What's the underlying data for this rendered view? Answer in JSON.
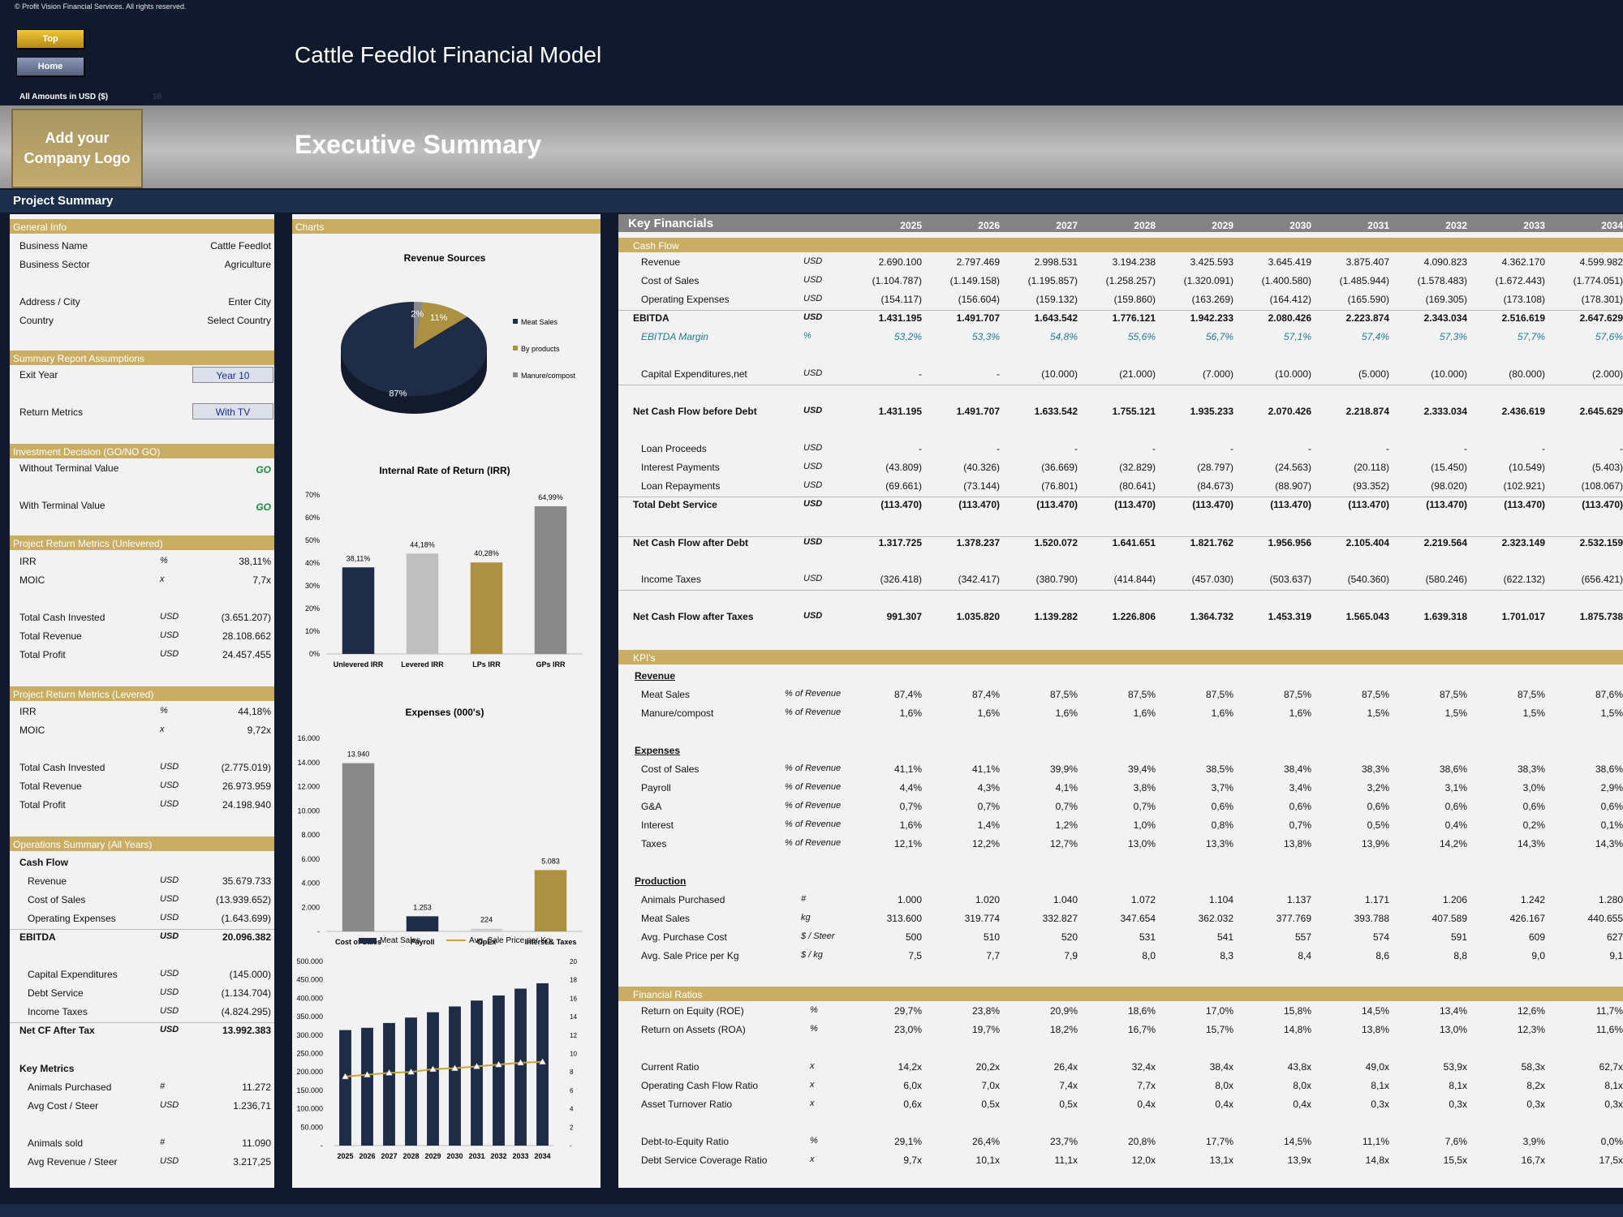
{
  "copyright": "© Profit Vision Financial Services. All rights reserved.",
  "nav": {
    "top": "Top",
    "home": "Home"
  },
  "model_title": "Cattle Feedlot Financial Model",
  "amounts_label": "All Amounts in  USD ($)",
  "amounts_faint": "16",
  "logo": {
    "line1": "Add your",
    "line2": "Company Logo"
  },
  "exec_title": "Executive Summary",
  "project_summary": "Project Summary",
  "colors": {
    "gold": "#c8ad62",
    "navy": "#1b2e4b",
    "go": "#1a8c3b"
  },
  "left": {
    "general_info": {
      "title": "General Info",
      "rows": [
        {
          "label": "Business Name",
          "value": "Cattle Feedlot"
        },
        {
          "label": "Business Sector",
          "value": "Agriculture"
        },
        {
          "label": "Address / City",
          "value": "Enter City"
        },
        {
          "label": "Country",
          "value": "Select Country"
        }
      ]
    },
    "assumptions": {
      "title": "Summary  Report Assumptions",
      "exit_label": "Exit Year",
      "exit_value": "Year 10",
      "return_label": "Return Metrics",
      "return_value": "With TV"
    },
    "decision": {
      "title": "Investment Decision (GO/NO GO)",
      "without_label": "Without Terminal Value",
      "without_value": "GO",
      "with_label": "With Terminal Value",
      "with_value": "GO"
    },
    "unlevered": {
      "title": "Project Return Metrics (Unlevered)",
      "rows": [
        {
          "label": "IRR",
          "unit": "%",
          "value": "38,11%"
        },
        {
          "label": "MOIC",
          "unit": "x",
          "value": "7,7x"
        },
        {
          "label": "Total Cash Invested",
          "unit": "USD",
          "value": "(3.651.207)"
        },
        {
          "label": "Total Revenue",
          "unit": "USD",
          "value": "28.108.662"
        },
        {
          "label": "Total Profit",
          "unit": "USD",
          "value": "24.457.455"
        }
      ]
    },
    "levered": {
      "title": "Project Return Metrics (Levered)",
      "rows": [
        {
          "label": "IRR",
          "unit": "%",
          "value": "44,18%"
        },
        {
          "label": "MOIC",
          "unit": "x",
          "value": "9,72x"
        },
        {
          "label": "Total Cash Invested",
          "unit": "USD",
          "value": "(2.775.019)"
        },
        {
          "label": "Total Revenue",
          "unit": "USD",
          "value": "26.973.959"
        },
        {
          "label": "Total Profit",
          "unit": "USD",
          "value": "24.198.940"
        }
      ]
    },
    "operations": {
      "title": "Operations Summary (All Years)",
      "cashflow_label": "Cash Flow",
      "rows": [
        {
          "label": "Revenue",
          "unit": "USD",
          "value": "35.679.733"
        },
        {
          "label": "Cost of Sales",
          "unit": "USD",
          "value": "(13.939.652)"
        },
        {
          "label": "Operating Expenses",
          "unit": "USD",
          "value": "(1.643.699)"
        },
        {
          "label": "EBITDA",
          "unit": "USD",
          "value": "20.096.382"
        },
        {
          "label": "Capital Expenditures",
          "unit": "USD",
          "value": "(145.000)"
        },
        {
          "label": "Debt Service",
          "unit": "USD",
          "value": "(1.134.704)"
        },
        {
          "label": "Income Taxes",
          "unit": "USD",
          "value": "(4.824.295)"
        },
        {
          "label": "Net CF After Tax",
          "unit": "USD",
          "value": "13.992.383"
        }
      ],
      "key_metrics_label": "Key Metrics",
      "metrics": [
        {
          "label": "Animals Purchased",
          "unit": "#",
          "value": "11.272"
        },
        {
          "label": "Avg Cost / Steer",
          "unit": "USD",
          "value": "1.236,71"
        },
        {
          "label": "Animals sold",
          "unit": "#",
          "value": "11.090"
        },
        {
          "label": "Avg Revenue / Steer",
          "unit": "USD",
          "value": "3.217,25"
        }
      ]
    }
  },
  "charts_title": "Charts",
  "chart_data": [
    {
      "type": "pie",
      "title": "Revenue Sources",
      "categories": [
        "Meat Sales",
        "By products",
        "Manure/compost"
      ],
      "values": [
        87,
        11,
        2
      ],
      "labels": [
        "87%",
        "11%",
        "2%"
      ],
      "colors": [
        "#1f2c45",
        "#ad9142",
        "#8a8a8a"
      ],
      "legend": "right"
    },
    {
      "type": "bar",
      "title": "Internal Rate of Return (IRR)",
      "categories": [
        "Unlevered IRR",
        "Levered IRR",
        "LPs IRR",
        "GPs IRR"
      ],
      "values": [
        38.11,
        44.18,
        40.28,
        64.99
      ],
      "labels": [
        "38,11%",
        "44,18%",
        "40,28%",
        "64,99%"
      ],
      "colors": [
        "#1f2c45",
        "#bfbfbf",
        "#ad9142",
        "#8a8a8a"
      ],
      "ylim": [
        0,
        70
      ],
      "yticks": [
        "0%",
        "10%",
        "20%",
        "30%",
        "40%",
        "50%",
        "60%",
        "70%"
      ]
    },
    {
      "type": "bar",
      "title": "Expenses (000's)",
      "categories": [
        "Cost of Sales",
        "Payroll",
        "OpEx",
        "Interst & Taxes"
      ],
      "values": [
        13940,
        1253,
        224,
        5083
      ],
      "labels": [
        "13.940",
        "1.253",
        "224",
        "5.083"
      ],
      "colors": [
        "#8a8a8a",
        "#1f2c45",
        "#d0d0d0",
        "#ad9142"
      ],
      "ylim": [
        0,
        16000
      ],
      "yticks": [
        "-",
        "2.000",
        "4.000",
        "6.000",
        "8.000",
        "10.000",
        "12.000",
        "14.000",
        "16.000"
      ]
    },
    {
      "type": "bar",
      "title": "",
      "categories": [
        "2025",
        "2026",
        "2027",
        "2028",
        "2029",
        "2030",
        "2031",
        "2032",
        "2033",
        "2034"
      ],
      "series": [
        {
          "name": "Meat Sales",
          "type": "bar",
          "values": [
            313600,
            319774,
            332827,
            347654,
            362032,
            377769,
            393788,
            407589,
            426167,
            440655
          ]
        },
        {
          "name": "Avg. Sale Price per Kg",
          "type": "line",
          "axis": "right",
          "values": [
            7.5,
            7.7,
            7.9,
            8.0,
            8.3,
            8.4,
            8.6,
            8.8,
            9.0,
            9.1
          ]
        }
      ],
      "ylim": [
        0,
        500000
      ],
      "y2lim": [
        0,
        20
      ],
      "yticks": [
        "-",
        "50.000",
        "100.000",
        "150.000",
        "200.000",
        "250.000",
        "300.000",
        "350.000",
        "400.000",
        "450.000",
        "500.000"
      ],
      "y2ticks": [
        "-",
        "2",
        "4",
        "6",
        "8",
        "10",
        "12",
        "14",
        "16",
        "18",
        "20"
      ],
      "legend": "top"
    }
  ],
  "financials": {
    "title": "Key Financials",
    "years": [
      "2025",
      "2026",
      "2027",
      "2028",
      "2029",
      "2030",
      "2031",
      "2032",
      "2033",
      "2034"
    ],
    "sections": {
      "cash_flow": "Cash Flow",
      "kpis": "KPI's",
      "ratios": "Financial Ratios"
    },
    "subheads": {
      "revenue": "Revenue",
      "expenses": "Expenses",
      "production": "Production"
    },
    "cash_flow_rows": [
      {
        "label": "Revenue",
        "unit": "USD",
        "values": [
          "2.690.100",
          "2.797.469",
          "2.998.531",
          "3.194.238",
          "3.425.593",
          "3.645.419",
          "3.875.407",
          "4.090.823",
          "4.362.170",
          "4.599.982"
        ]
      },
      {
        "label": "Cost of Sales",
        "unit": "USD",
        "values": [
          "(1.104.787)",
          "(1.149.158)",
          "(1.195.857)",
          "(1.258.257)",
          "(1.320.091)",
          "(1.400.580)",
          "(1.485.944)",
          "(1.578.483)",
          "(1.672.443)",
          "(1.774.051)"
        ]
      },
      {
        "label": "Operating Expenses",
        "unit": "USD",
        "values": [
          "(154.117)",
          "(156.604)",
          "(159.132)",
          "(159.860)",
          "(163.269)",
          "(164.412)",
          "(165.590)",
          "(169.305)",
          "(173.108)",
          "(178.301)"
        ]
      },
      {
        "label": "EBITDA",
        "unit": "USD",
        "values": [
          "1.431.195",
          "1.491.707",
          "1.643.542",
          "1.776.121",
          "1.942.233",
          "2.080.426",
          "2.223.874",
          "2.343.034",
          "2.516.619",
          "2.647.629"
        ]
      },
      {
        "label": "EBITDA Margin",
        "unit": "%",
        "values": [
          "53,2%",
          "53,3%",
          "54,8%",
          "55,6%",
          "56,7%",
          "57,1%",
          "57,4%",
          "57,3%",
          "57,7%",
          "57,6%"
        ]
      },
      {
        "label": "Capital Expenditures,net",
        "unit": "USD",
        "values": [
          "-",
          "-",
          "(10.000)",
          "(21.000)",
          "(7.000)",
          "(10.000)",
          "(5.000)",
          "(10.000)",
          "(80.000)",
          "(2.000)"
        ]
      },
      {
        "label": "Net Cash Flow before Debt",
        "unit": "USD",
        "values": [
          "1.431.195",
          "1.491.707",
          "1.633.542",
          "1.755.121",
          "1.935.233",
          "2.070.426",
          "2.218.874",
          "2.333.034",
          "2.436.619",
          "2.645.629"
        ]
      },
      {
        "label": "Loan Proceeds",
        "unit": "USD",
        "values": [
          "-",
          "-",
          "-",
          "-",
          "-",
          "-",
          "-",
          "-",
          "-",
          "-"
        ]
      },
      {
        "label": "Interest Payments",
        "unit": "USD",
        "values": [
          "(43.809)",
          "(40.326)",
          "(36.669)",
          "(32.829)",
          "(28.797)",
          "(24.563)",
          "(20.118)",
          "(15.450)",
          "(10.549)",
          "(5.403)"
        ]
      },
      {
        "label": "Loan Repayments",
        "unit": "USD",
        "values": [
          "(69.661)",
          "(73.144)",
          "(76.801)",
          "(80.641)",
          "(84.673)",
          "(88.907)",
          "(93.352)",
          "(98.020)",
          "(102.921)",
          "(108.067)"
        ]
      },
      {
        "label": "Total Debt Service",
        "unit": "USD",
        "values": [
          "(113.470)",
          "(113.470)",
          "(113.470)",
          "(113.470)",
          "(113.470)",
          "(113.470)",
          "(113.470)",
          "(113.470)",
          "(113.470)",
          "(113.470)"
        ]
      },
      {
        "label": "Net Cash Flow after Debt",
        "unit": "USD",
        "values": [
          "1.317.725",
          "1.378.237",
          "1.520.072",
          "1.641.651",
          "1.821.762",
          "1.956.956",
          "2.105.404",
          "2.219.564",
          "2.323.149",
          "2.532.159"
        ]
      },
      {
        "label": "Income Taxes",
        "unit": "USD",
        "values": [
          "(326.418)",
          "(342.417)",
          "(380.790)",
          "(414.844)",
          "(457.030)",
          "(503.637)",
          "(540.360)",
          "(580.246)",
          "(622.132)",
          "(656.421)"
        ]
      },
      {
        "label": "Net Cash Flow after Taxes",
        "unit": "USD",
        "values": [
          "991.307",
          "1.035.820",
          "1.139.282",
          "1.226.806",
          "1.364.732",
          "1.453.319",
          "1.565.043",
          "1.639.318",
          "1.701.017",
          "1.875.738"
        ]
      }
    ],
    "kpi_rows": [
      {
        "label": "Meat Sales",
        "unit": "% of Revenue",
        "values": [
          "87,4%",
          "87,4%",
          "87,5%",
          "87,5%",
          "87,5%",
          "87,5%",
          "87,5%",
          "87,5%",
          "87,5%",
          "87,6%"
        ]
      },
      {
        "label": "Manure/compost",
        "unit": "% of Revenue",
        "values": [
          "1,6%",
          "1,6%",
          "1,6%",
          "1,6%",
          "1,6%",
          "1,6%",
          "1,5%",
          "1,5%",
          "1,5%",
          "1,5%"
        ]
      },
      {
        "label": "Cost of Sales",
        "unit": "% of Revenue",
        "values": [
          "41,1%",
          "41,1%",
          "39,9%",
          "39,4%",
          "38,5%",
          "38,4%",
          "38,3%",
          "38,6%",
          "38,3%",
          "38,6%"
        ]
      },
      {
        "label": "Payroll",
        "unit": "% of Revenue",
        "values": [
          "4,4%",
          "4,3%",
          "4,1%",
          "3,8%",
          "3,7%",
          "3,4%",
          "3,2%",
          "3,1%",
          "3,0%",
          "2,9%"
        ]
      },
      {
        "label": "G&A",
        "unit": "% of Revenue",
        "values": [
          "0,7%",
          "0,7%",
          "0,7%",
          "0,7%",
          "0,6%",
          "0,6%",
          "0,6%",
          "0,6%",
          "0,6%",
          "0,6%"
        ]
      },
      {
        "label": "Interest",
        "unit": "% of Revenue",
        "values": [
          "1,6%",
          "1,4%",
          "1,2%",
          "1,0%",
          "0,8%",
          "0,7%",
          "0,5%",
          "0,4%",
          "0,2%",
          "0,1%"
        ]
      },
      {
        "label": "Taxes",
        "unit": "% of Revenue",
        "values": [
          "12,1%",
          "12,2%",
          "12,7%",
          "13,0%",
          "13,3%",
          "13,8%",
          "13,9%",
          "14,2%",
          "14,3%",
          "14,3%"
        ]
      },
      {
        "label": "Animals Purchased",
        "unit": "#",
        "values": [
          "1.000",
          "1.020",
          "1.040",
          "1.072",
          "1.104",
          "1.137",
          "1.171",
          "1.206",
          "1.242",
          "1.280"
        ]
      },
      {
        "label": "Meat Sales",
        "unit": "kg",
        "values": [
          "313.600",
          "319.774",
          "332.827",
          "347.654",
          "362.032",
          "377.769",
          "393.788",
          "407.589",
          "426.167",
          "440.655"
        ]
      },
      {
        "label": "Avg. Purchase Cost",
        "unit": "$ / Steer",
        "values": [
          "500",
          "510",
          "520",
          "531",
          "541",
          "557",
          "574",
          "591",
          "609",
          "627"
        ]
      },
      {
        "label": "Avg. Sale Price per Kg",
        "unit": "$ / kg",
        "values": [
          "7,5",
          "7,7",
          "7,9",
          "8,0",
          "8,3",
          "8,4",
          "8,6",
          "8,8",
          "9,0",
          "9,1"
        ]
      }
    ],
    "ratio_rows": [
      {
        "label": "Return on Equity (ROE)",
        "unit": "%",
        "values": [
          "29,7%",
          "23,8%",
          "20,9%",
          "18,6%",
          "17,0%",
          "15,8%",
          "14,5%",
          "13,4%",
          "12,6%",
          "11,7%"
        ]
      },
      {
        "label": "Return on Assets (ROA)",
        "unit": "%",
        "values": [
          "23,0%",
          "19,7%",
          "18,2%",
          "16,7%",
          "15,7%",
          "14,8%",
          "13,8%",
          "13,0%",
          "12,3%",
          "11,6%"
        ]
      },
      {
        "label": "Current Ratio",
        "unit": "x",
        "values": [
          "14,2x",
          "20,2x",
          "26,4x",
          "32,4x",
          "38,4x",
          "43,8x",
          "49,0x",
          "53,9x",
          "58,3x",
          "62,7x"
        ]
      },
      {
        "label": "Operating Cash Flow Ratio",
        "unit": "x",
        "values": [
          "6,0x",
          "7,0x",
          "7,4x",
          "7,7x",
          "8,0x",
          "8,0x",
          "8,1x",
          "8,1x",
          "8,2x",
          "8,1x"
        ]
      },
      {
        "label": "Asset Turnover Ratio",
        "unit": "x",
        "values": [
          "0,6x",
          "0,5x",
          "0,5x",
          "0,4x",
          "0,4x",
          "0,4x",
          "0,3x",
          "0,3x",
          "0,3x",
          "0,3x"
        ]
      },
      {
        "label": "Debt-to-Equity Ratio",
        "unit": "%",
        "values": [
          "29,1%",
          "26,4%",
          "23,7%",
          "20,8%",
          "17,7%",
          "14,5%",
          "11,1%",
          "7,6%",
          "3,9%",
          "0,0%"
        ]
      },
      {
        "label": "Debt Service Coverage Ratio",
        "unit": "x",
        "values": [
          "9,7x",
          "10,1x",
          "11,1x",
          "12,0x",
          "13,1x",
          "13,9x",
          "14,8x",
          "15,5x",
          "16,7x",
          "17,5x"
        ]
      }
    ]
  }
}
